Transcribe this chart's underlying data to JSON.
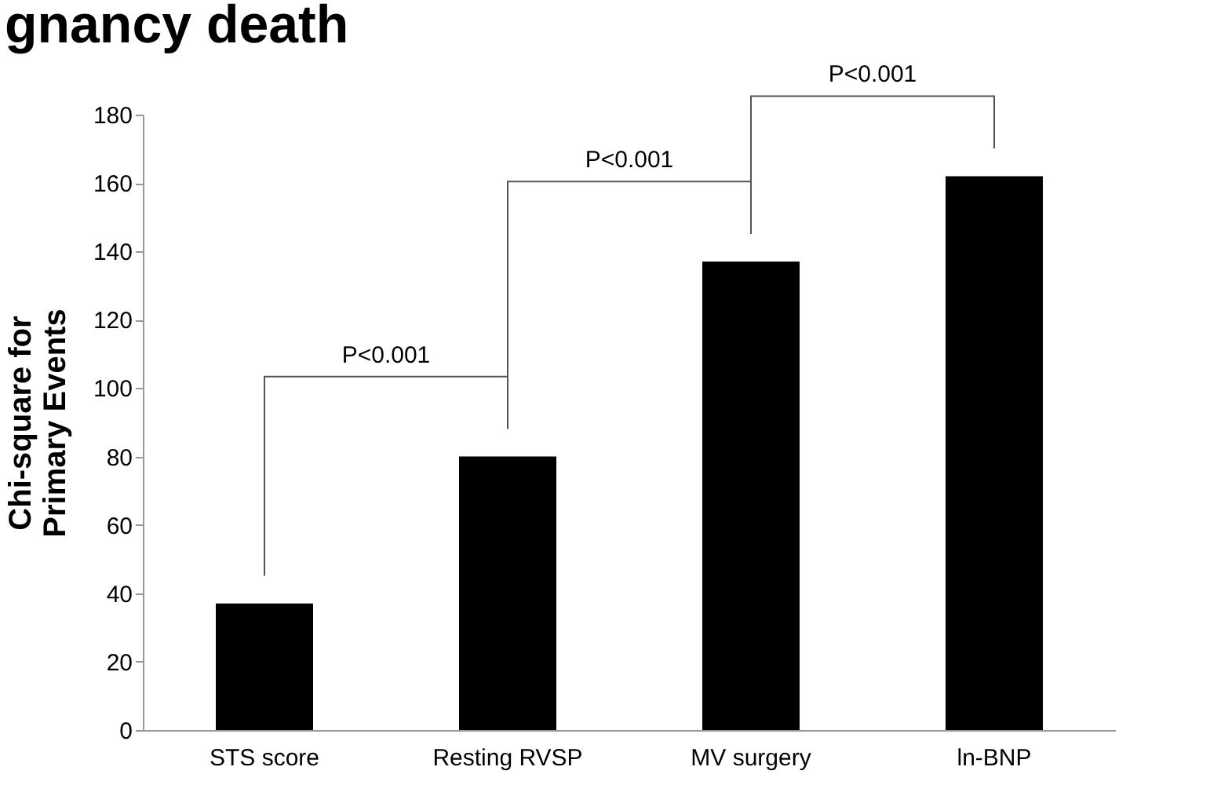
{
  "chart_data": {
    "type": "bar",
    "title": "gnancy death",
    "ylabel": "Chi-square for Primary Events",
    "categories": [
      "STS score",
      "Resting RVSP",
      "MV surgery",
      "ln-BNP"
    ],
    "values": [
      37,
      80,
      137,
      162
    ],
    "color": "#000000",
    "ylim": [
      0,
      180
    ],
    "yticks": [
      0,
      20,
      40,
      60,
      80,
      100,
      120,
      140,
      160,
      180
    ],
    "annotations": [
      "P<0.001",
      "P<0.001",
      "P<0.001"
    ]
  }
}
